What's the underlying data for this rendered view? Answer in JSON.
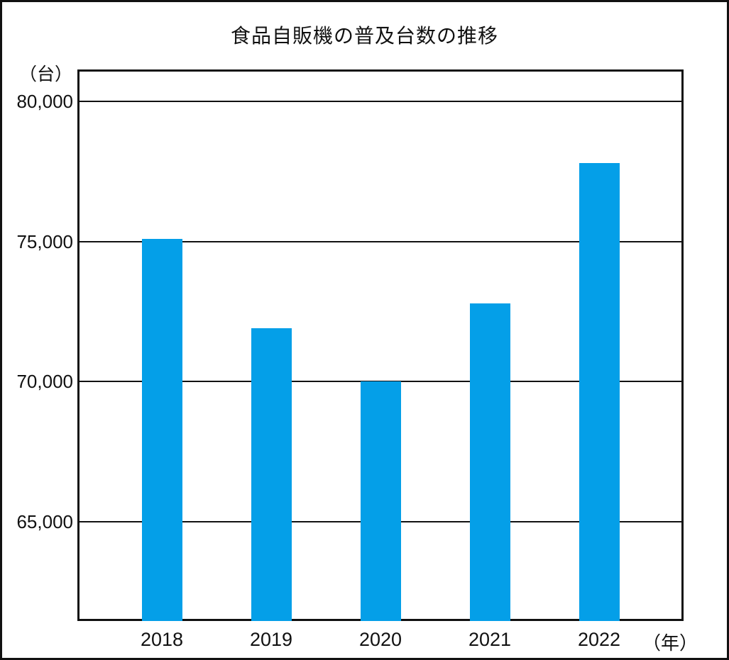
{
  "chart_data": {
    "type": "bar",
    "title": "食品自販機の普及台数の推移",
    "y_unit_label": "（台）",
    "x_unit_label": "（年）",
    "categories": [
      "2018",
      "2019",
      "2020",
      "2021",
      "2022"
    ],
    "values": [
      75100,
      71900,
      70000,
      72800,
      77800
    ],
    "y_ticks": [
      80000,
      75000,
      70000,
      65000
    ],
    "y_tick_labels": [
      "80,000",
      "75,000",
      "70,000",
      "65,000"
    ],
    "ylim": [
      61530,
      81060
    ],
    "xlabel": "",
    "ylabel": "",
    "grid": "horizontal",
    "legend": "none",
    "bar_color": "#049FE8",
    "line_color": "#111111"
  }
}
